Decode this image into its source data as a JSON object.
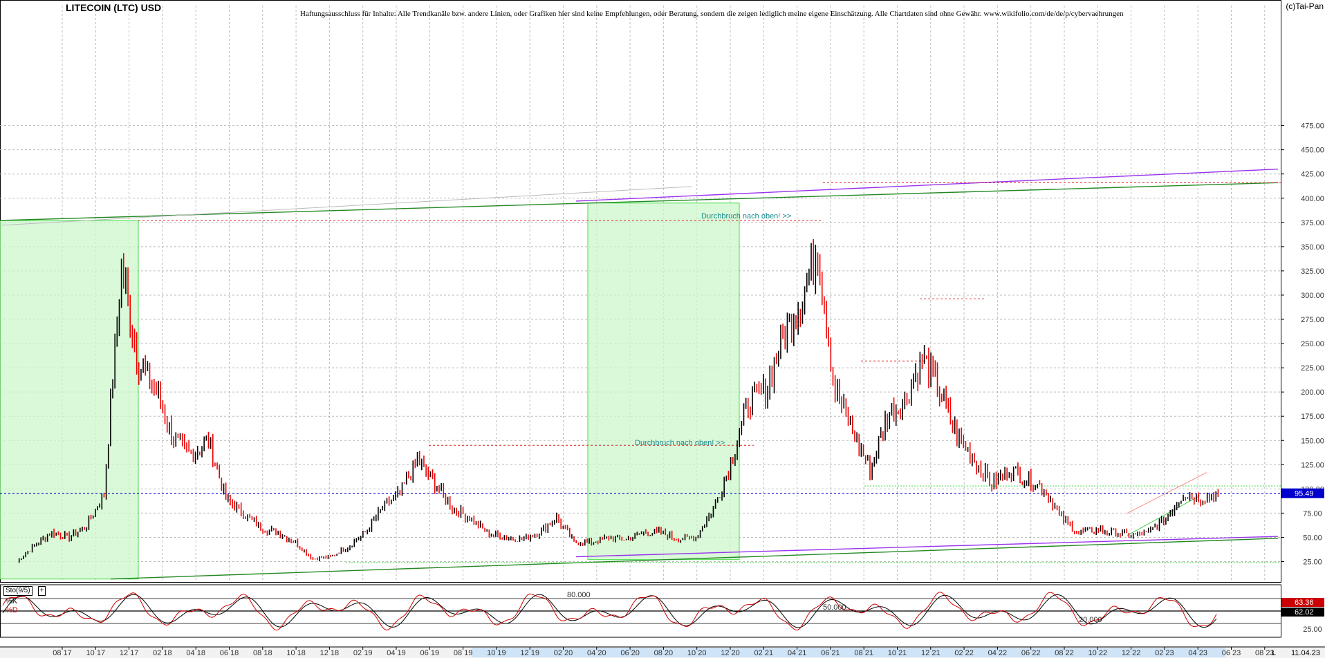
{
  "header": {
    "title": "LITECOIN (LTC) USD",
    "disclaimer": "Haftungsausschluss für Inhalte: Alle Trendkanäle bzw. andere Linien, oder Grafiken hier sind keine Empfehlungen, oder Beratung, sondern die zeigen lediglich meine eigene Einschätzung. Alle Chartdaten sind ohne Gewähr. www.wikifolio.com/de/de/p/cybervaehrungen",
    "copyright": "(c)Tai-Pan"
  },
  "indicator": {
    "button_label": "Sto(9/5)",
    "add_label": "+",
    "k_label": "%K",
    "d_label": "%D",
    "k_value": "63.36",
    "d_value": "62.02",
    "k_color": "#cc0000",
    "d_color": "#000000",
    "levels": [
      {
        "value": 80,
        "label": "80.000"
      },
      {
        "value": 50,
        "label": "50.000"
      },
      {
        "value": 20,
        "label": "20.000"
      }
    ],
    "axis_label": "25.00"
  },
  "footer": {
    "date": "11.04.23",
    "end_marker": "L"
  },
  "colors": {
    "up_candle": "#000000",
    "down_candle": "#ee0000",
    "channel_green": "#228822",
    "channel_purple": "#9933ee",
    "zone_fill": "#ccf7cc",
    "zone_border": "#44dd44",
    "current_price": "#0000cc",
    "resistance": "#dd2222"
  },
  "chart_data": {
    "type": "line",
    "title": "LITECOIN (LTC) USD",
    "xlabel": "",
    "ylabel": "",
    "ylim": [
      0,
      490
    ],
    "grid": true,
    "y_ticks": [
      "25.00",
      "50.00",
      "75.00",
      "100.00",
      "125.00",
      "150.00",
      "175.00",
      "200.00",
      "225.00",
      "250.00",
      "275.00",
      "300.00",
      "325.00",
      "350.00",
      "375.00",
      "400.00",
      "425.00",
      "450.00",
      "475.00"
    ],
    "x_ticks": [
      "08 17",
      "10 17",
      "12 17",
      "02 18",
      "04 18",
      "06 18",
      "08 18",
      "10 18",
      "12 18",
      "02 19",
      "04 19",
      "06 19",
      "08 19",
      "10 19",
      "12 19",
      "02 20",
      "04 20",
      "06 20",
      "08 20",
      "10 20",
      "12 20",
      "02 21",
      "04 21",
      "06 21",
      "08 21",
      "10 21",
      "12 21",
      "02 22",
      "04 22",
      "06 22",
      "08 22",
      "10 22",
      "12 22",
      "02 23",
      "04 23",
      "06 23",
      "08 23"
    ],
    "x": [
      "2017-07",
      "2017-08",
      "2017-09",
      "2017-10",
      "2017-11",
      "2017-12",
      "2018-01",
      "2018-02",
      "2018-03",
      "2018-04",
      "2018-05",
      "2018-06",
      "2018-07",
      "2018-08",
      "2018-09",
      "2018-10",
      "2018-11",
      "2018-12",
      "2019-01",
      "2019-02",
      "2019-03",
      "2019-04",
      "2019-05",
      "2019-06",
      "2019-07",
      "2019-08",
      "2019-09",
      "2019-10",
      "2019-11",
      "2019-12",
      "2020-01",
      "2020-02",
      "2020-03",
      "2020-04",
      "2020-05",
      "2020-06",
      "2020-07",
      "2020-08",
      "2020-09",
      "2020-10",
      "2020-11",
      "2020-12",
      "2021-01",
      "2021-02",
      "2021-03",
      "2021-04",
      "2021-05",
      "2021-06",
      "2021-07",
      "2021-08",
      "2021-09",
      "2021-10",
      "2021-11",
      "2021-12",
      "2022-01",
      "2022-02",
      "2022-03",
      "2022-04",
      "2022-05",
      "2022-06",
      "2022-07",
      "2022-08",
      "2022-09",
      "2022-10",
      "2022-11",
      "2022-12",
      "2023-01",
      "2023-02",
      "2023-03",
      "2023-04"
    ],
    "series": [
      {
        "values": [
          25,
          42,
          55,
          50,
          62,
          95,
          330,
          230,
          200,
          150,
          135,
          150,
          90,
          75,
          60,
          55,
          45,
          28,
          30,
          40,
          55,
          80,
          95,
          130,
          105,
          80,
          70,
          55,
          50,
          48,
          55,
          70,
          45,
          45,
          50,
          48,
          55,
          55,
          48,
          50,
          80,
          125,
          190,
          200,
          260,
          290,
          350,
          200,
          160,
          120,
          175,
          190,
          235,
          200,
          155,
          130,
          105,
          120,
          110,
          100,
          70,
          55,
          58,
          55,
          52,
          55,
          70,
          95,
          90,
          95
        ]
      }
    ],
    "current_price": 95.49,
    "annotations": [
      {
        "text": "Durchbruch nach oben! >>",
        "value": 382
      },
      {
        "text": "Durchbruch nach oben! >>",
        "value": 148
      }
    ]
  }
}
